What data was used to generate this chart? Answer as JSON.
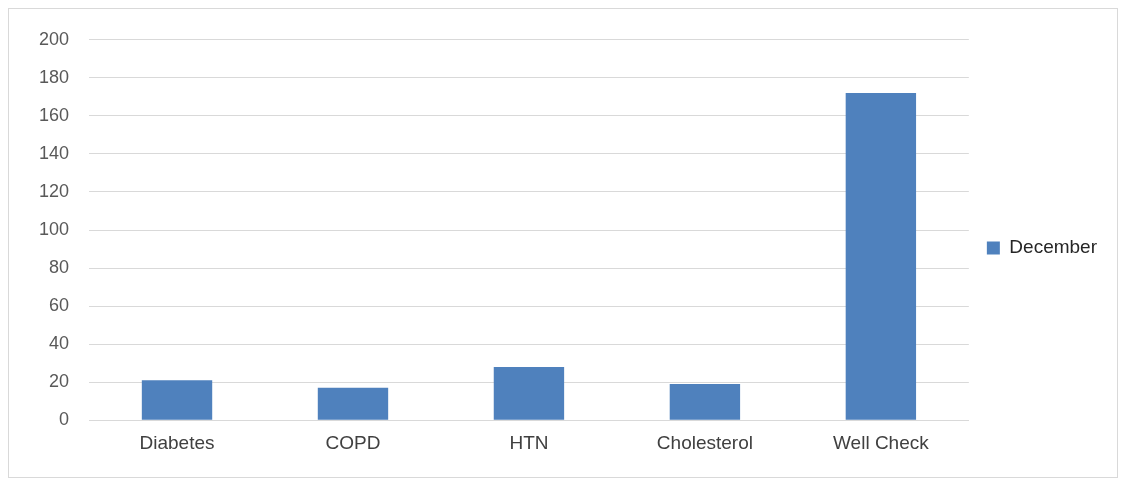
{
  "chart_data": {
    "type": "bar",
    "categories": [
      "Diabetes",
      "COPD",
      "HTN",
      "Cholesterol",
      "Well Check"
    ],
    "series": [
      {
        "name": "December",
        "color": "#4f81bd",
        "values": [
          21,
          17,
          28,
          19,
          172
        ]
      }
    ],
    "ylim": [
      0,
      200
    ],
    "yticks": [
      0,
      20,
      40,
      60,
      80,
      100,
      120,
      140,
      160,
      180,
      200
    ],
    "grid": "y",
    "legend": "right"
  }
}
